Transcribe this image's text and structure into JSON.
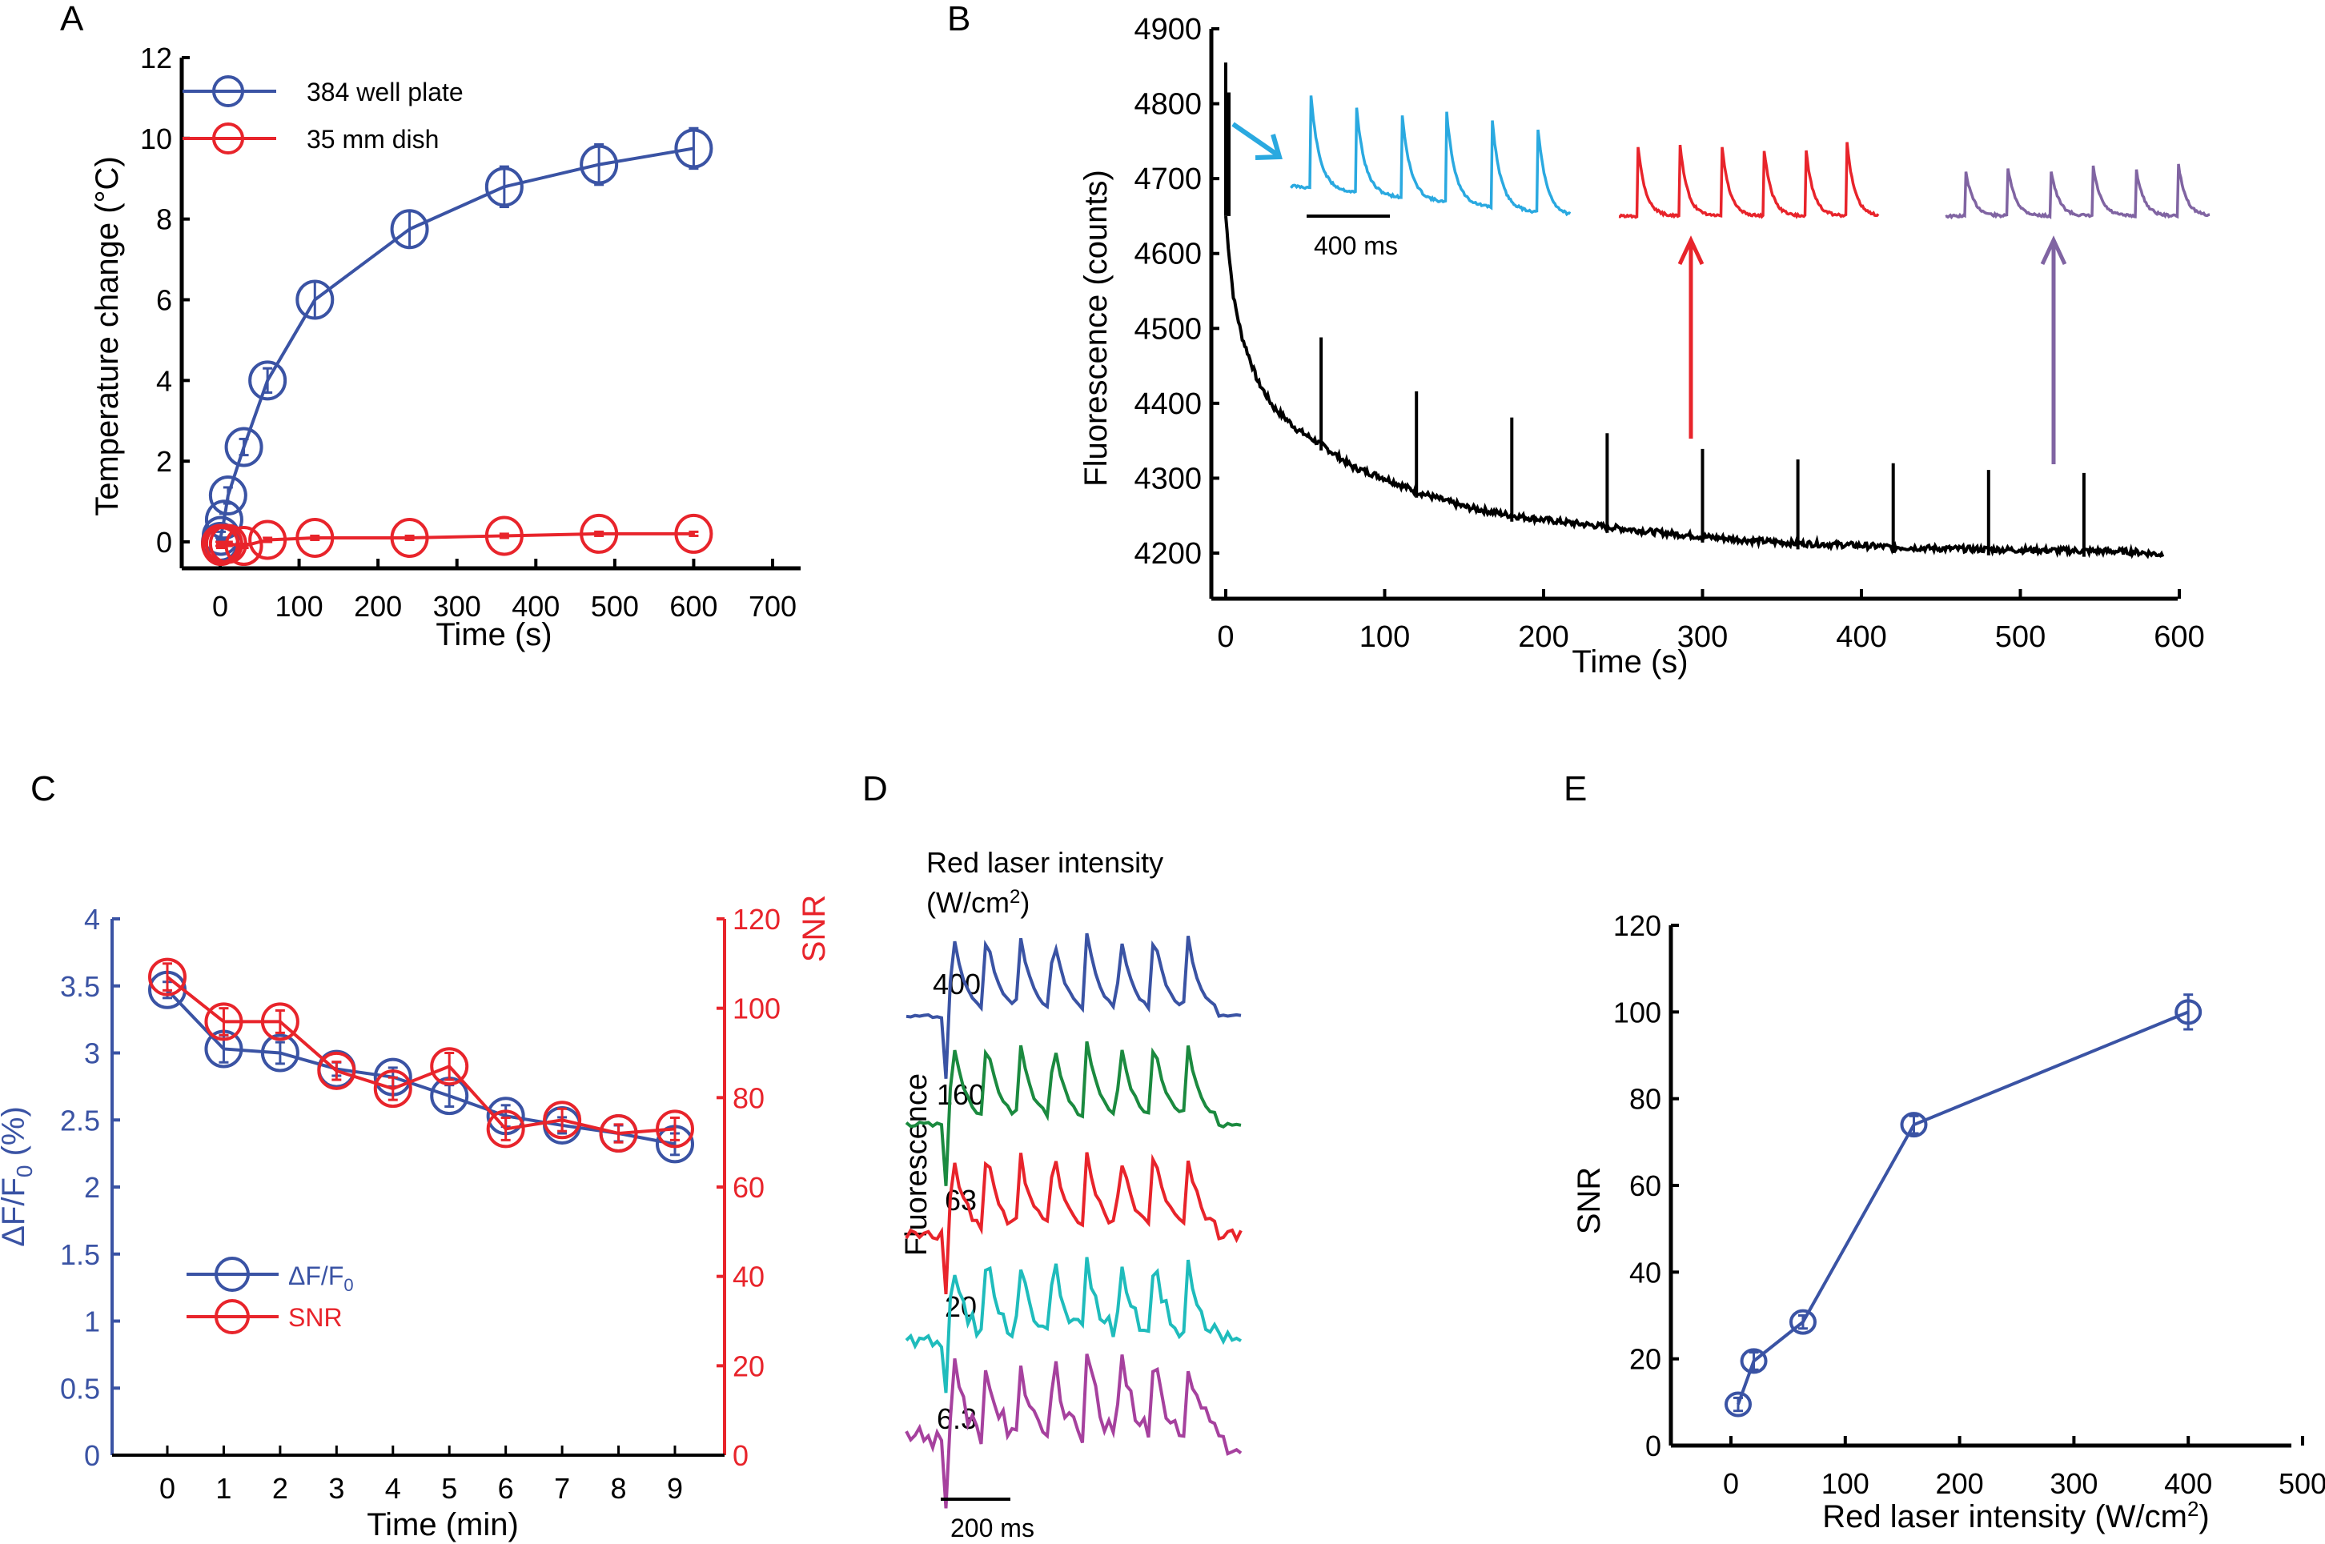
{
  "figure": {
    "panels": [
      "A",
      "B",
      "C",
      "D",
      "E"
    ]
  },
  "colors": {
    "blue": "#3a53a4",
    "red": "#e8242b",
    "cyan_trace": "#2aa9e0",
    "purple_trace": "#8064a2",
    "green": "#1b8a3f",
    "teal": "#1fbcbc",
    "magenta": "#a6419e",
    "black": "#000000"
  },
  "chart_data": [
    {
      "panel": "A",
      "type": "line",
      "title": "",
      "xlabel": "Time (s)",
      "ylabel": "Temperature change (°C)",
      "xlim": [
        -25,
        700
      ],
      "ylim": [
        -0.5,
        12
      ],
      "xticks": [
        0,
        100,
        200,
        300,
        400,
        500,
        600,
        700
      ],
      "yticks": [
        0,
        2,
        4,
        6,
        8,
        10,
        12
      ],
      "grid": false,
      "legend_position": "top-left",
      "series": [
        {
          "name": "384 well plate",
          "color_key": "blue",
          "x": [
            0,
            1,
            5,
            10,
            30,
            60,
            120,
            240,
            360,
            480,
            600
          ],
          "y": [
            0.0,
            0.15,
            0.55,
            1.15,
            2.35,
            4.0,
            6.0,
            7.75,
            8.8,
            9.35,
            9.75
          ],
          "err": [
            0.1,
            0.1,
            0.15,
            0.2,
            0.2,
            0.3,
            0.45,
            0.45,
            0.5,
            0.5,
            0.5
          ]
        },
        {
          "name": "35 mm dish",
          "color_key": "red",
          "x": [
            0,
            1,
            5,
            10,
            30,
            60,
            120,
            240,
            360,
            480,
            600
          ],
          "y": [
            -0.05,
            -0.1,
            -0.05,
            -0.05,
            -0.1,
            0.05,
            0.1,
            0.1,
            0.15,
            0.2,
            0.2
          ],
          "err": [
            0.05,
            0.05,
            0.05,
            0.05,
            0.05,
            0.05,
            0.05,
            0.05,
            0.05,
            0.05,
            0.05
          ]
        }
      ]
    },
    {
      "panel": "B",
      "type": "line",
      "title": "",
      "xlabel": "Time (s)",
      "ylabel": "Fluorescence (counts)",
      "xlim": [
        -8,
        600
      ],
      "ylim": [
        4160,
        4900
      ],
      "xticks": [
        0,
        100,
        200,
        300,
        400,
        500,
        600
      ],
      "yticks": [
        4200,
        4300,
        4400,
        4500,
        4600,
        4700,
        4800,
        4900
      ],
      "grid": false,
      "baseline": {
        "description": "decaying fluorescence baseline",
        "t": [
          0,
          2,
          5,
          10,
          20,
          30,
          45,
          60,
          80,
          100,
          120,
          150,
          180,
          210,
          240,
          270,
          300,
          330,
          360,
          390,
          420,
          450,
          480,
          510,
          540,
          570,
          590
        ],
        "counts": [
          4650,
          4600,
          4540,
          4490,
          4430,
          4395,
          4365,
          4345,
          4315,
          4300,
          4282,
          4262,
          4250,
          4242,
          4235,
          4228,
          4222,
          4217,
          4213,
          4211,
          4208,
          4206,
          4205,
          4204,
          4203,
          4202,
          4198
        ]
      },
      "initial_spikes": [
        4855,
        4815
      ],
      "stimulation_spikes": {
        "t": [
          60,
          120,
          180,
          240,
          300,
          360,
          420,
          480,
          540
        ],
        "peak_counts": [
          4488,
          4416,
          4381,
          4360,
          4339,
          4325,
          4320,
          4311,
          4307
        ]
      },
      "insets": [
        {
          "color_key": "cyan_trace",
          "arrow_from_t": 0,
          "peaks": 6,
          "decay_trend": "declining",
          "scale_bar": "400 ms"
        },
        {
          "color_key": "red",
          "arrow_from_t": 300,
          "peaks": 6,
          "decay_trend": "steady"
        },
        {
          "color_key": "purple_trace",
          "arrow_from_t": 540,
          "peaks": 6,
          "decay_trend": "steady"
        }
      ],
      "scale_bar_label": "400 ms"
    },
    {
      "panel": "C",
      "type": "line",
      "title": "",
      "xlabel": "Time (min)",
      "ylabel_left": "ΔF/F0 (%)",
      "ylabel_right": "SNR",
      "xlim": [
        -1,
        10
      ],
      "ylim_left": [
        0,
        4
      ],
      "ylim_right": [
        0,
        120
      ],
      "xticks": [
        0,
        1,
        2,
        3,
        4,
        5,
        6,
        7,
        8,
        9
      ],
      "yticks_left": [
        "0",
        "0.5",
        "1",
        "1.5",
        "2",
        "2.5",
        "3",
        "3.5",
        "4"
      ],
      "yticks_right": [
        0,
        20,
        40,
        60,
        80,
        100,
        120
      ],
      "grid": false,
      "legend_position": "center-left",
      "series": [
        {
          "name": "ΔF/F0",
          "axis": "left",
          "color_key": "blue",
          "x": [
            0,
            1,
            2,
            3,
            4,
            5,
            6,
            7,
            8,
            9
          ],
          "y": [
            3.47,
            3.03,
            3.0,
            2.88,
            2.82,
            2.68,
            2.53,
            2.46,
            2.4,
            2.32
          ],
          "err": [
            0.06,
            0.1,
            0.08,
            0.05,
            0.07,
            0.08,
            0.08,
            0.06,
            0.06,
            0.08
          ]
        },
        {
          "name": "SNR",
          "axis": "right",
          "color_key": "red",
          "x": [
            0,
            1,
            2,
            3,
            4,
            5,
            6,
            7,
            8,
            9
          ],
          "y": [
            107,
            97,
            97,
            86,
            82,
            87,
            73,
            75,
            72,
            73
          ],
          "err": [
            3,
            3,
            2.5,
            2,
            2.5,
            3,
            2.5,
            2.5,
            2,
            2.5
          ]
        }
      ]
    },
    {
      "panel": "D",
      "type": "line",
      "title": "Red laser intensity",
      "subtitle": "(W/cm²)",
      "ylabel": "Fluorescence",
      "scale_bar_label": "200 ms",
      "grid": false,
      "traces": [
        {
          "intensity_label": "400",
          "color_key": "blue",
          "peaks": 8,
          "noise": 0.02
        },
        {
          "intensity_label": "160",
          "color_key": "green",
          "peaks": 8,
          "noise": 0.03
        },
        {
          "intensity_label": "63",
          "color_key": "red",
          "peaks": 8,
          "noise": 0.06
        },
        {
          "intensity_label": "20",
          "color_key": "teal",
          "peaks": 8,
          "noise": 0.11
        },
        {
          "intensity_label": "6.3",
          "color_key": "magenta",
          "peaks": 8,
          "noise": 0.16
        }
      ]
    },
    {
      "panel": "E",
      "type": "line",
      "title": "",
      "xlabel": "Red laser intensity (W/cm²)",
      "ylabel": "SNR",
      "xlim": [
        -50,
        500
      ],
      "ylim": [
        0,
        120
      ],
      "xticks": [
        0,
        100,
        200,
        300,
        400,
        500
      ],
      "yticks": [
        0,
        20,
        40,
        60,
        80,
        100,
        120
      ],
      "grid": false,
      "series": [
        {
          "name": "SNR",
          "color_key": "blue",
          "x": [
            6.3,
            20,
            63,
            160,
            400
          ],
          "y": [
            9.5,
            19.5,
            28.5,
            74,
            100
          ],
          "err": [
            1.5,
            2,
            1.5,
            2,
            4
          ]
        }
      ]
    }
  ],
  "texts": {
    "A": {
      "label": "A",
      "legend": [
        "384 well plate",
        "35 mm dish"
      ],
      "xlabel": "Time (s)",
      "ylabel": "Temperature change (°C)"
    },
    "B": {
      "label": "B",
      "xlabel": "Time (s)",
      "ylabel": "Fluorescence (counts)",
      "scale": "400 ms"
    },
    "C": {
      "label": "C",
      "legend_1": "ΔF/F",
      "legend_1_sub": "0",
      "legend_2": "SNR",
      "xlabel": "Time (min)",
      "ylabel_left": "ΔF/F",
      "ylabel_left_sub": "0",
      "ylabel_left_tail": " (%)",
      "ylabel_right": "SNR"
    },
    "D": {
      "label": "D",
      "title": "Red laser intensity",
      "unit_open": "(W/cm",
      "unit_sup": "2",
      "unit_close": ")",
      "ylabel": "Fluorescence",
      "scale": "200 ms"
    },
    "E": {
      "label": "E",
      "ylabel": "SNR",
      "xlabel_main": "Red laser intensity (W/cm",
      "xlabel_sup": "2",
      "xlabel_close": ")"
    }
  }
}
